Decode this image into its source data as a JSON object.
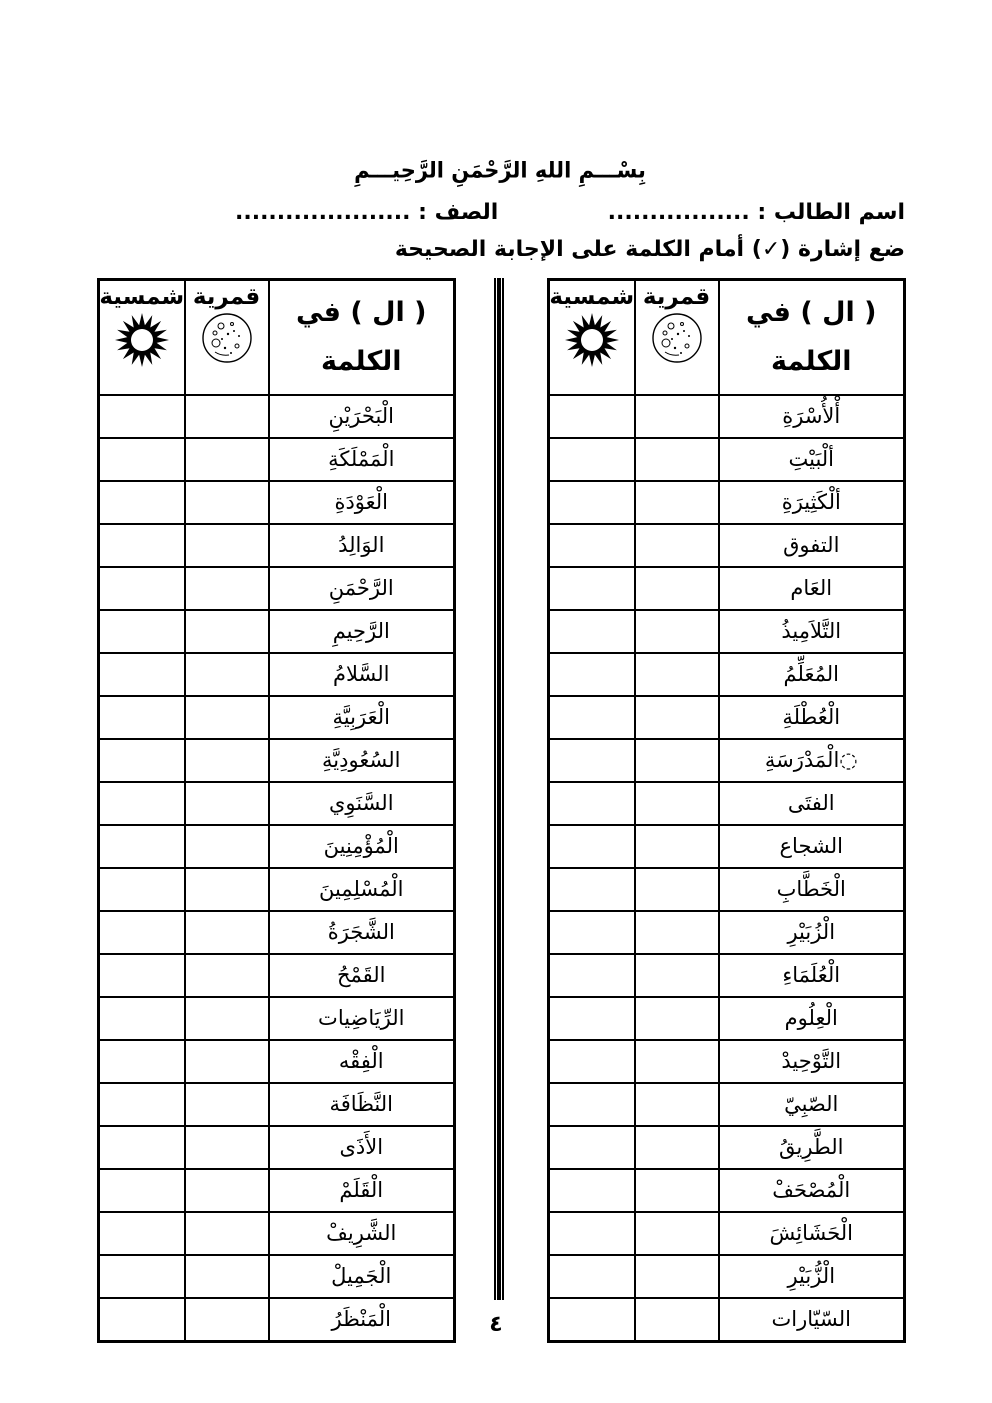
{
  "header": {
    "bismillah": "بِسْـــمِ اللهِ الرَّحْمَنِ الرَّحِيـــمِ",
    "student_name": "اسم الطالب : .................",
    "class_field": "الصف : .....................",
    "instruction": "ضع إشارة (✓) أمام الكلمة على الإجابة الصحيحة"
  },
  "table_header": {
    "word_line1": "( ال ) في",
    "word_line2": "الكلمة",
    "qamariya": "قمرية",
    "shamsiya": "شمسية",
    "icons": {
      "sun": "sun-icon",
      "moon": "moon-icon"
    }
  },
  "table_right": {
    "words": [
      "أْلأُسْرَةِ",
      "ألْبَيْتِ",
      "ألْكَثِيرَةِ",
      "التفوق",
      "العَام",
      "التَّلاَمِيذُ",
      "المُعَلِّمُ",
      "الْعُطْلَةِ",
      "◌الْمَدْرَسَةِ",
      "الفتَى",
      "الشجاع",
      "الْخَطَّابِ",
      "الْزُبَيْرِ",
      "الْعُلَمَاءِ",
      "الْعِلُوم",
      "التَّوْحِيدْ",
      "الصّبِيّ",
      "الطَّرِيقُ",
      "الْمُصْحَفْ",
      "الْحَشَائِشَ",
      "الْزُّبَيْرِ",
      "السّيّارات"
    ]
  },
  "table_left": {
    "words": [
      "الْبَحْرَيْنِ",
      "الْمَمْلَكَةِ",
      "الْعَوْدَةِ",
      "الوَالِدُ",
      "الرَّحْمَنِ",
      "الرَّحِيمِ",
      "السَّلامُ",
      "الْعَرَبِيَّةِ",
      "السُعُودِيَّةِ",
      "السَّنَوِي",
      "الْمُؤْمِنِينَ",
      "الْمُسْلِمِينَ",
      "الشَّجَرَةُ",
      "القَمْحُ",
      "الرِّيَاضِيات",
      "الْفِقْه",
      "النَّظَافَة",
      "الأَذَى",
      "الْقَلَمْ",
      "الشَّرِيفْ",
      "الْجَمِيلْ",
      "الْمَنْظَرُ"
    ]
  },
  "footer": {
    "page_number": "٤"
  },
  "colors": {
    "ink": "#000000",
    "paper": "#ffffff"
  }
}
